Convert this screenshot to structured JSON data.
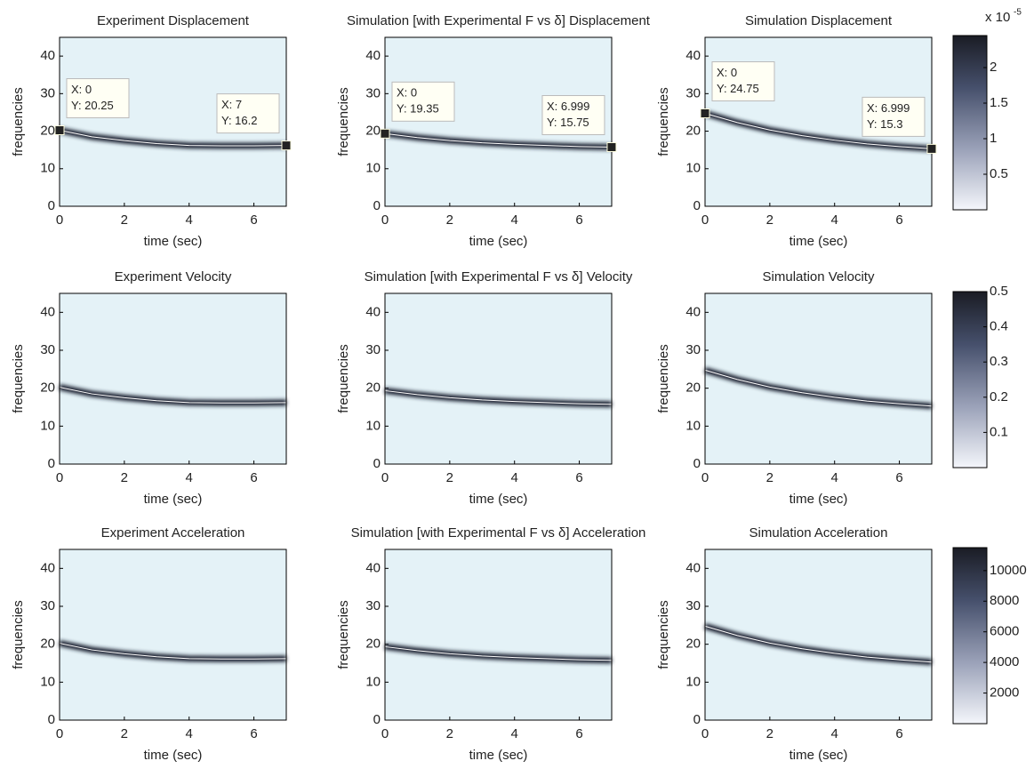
{
  "chart_data": [
    {
      "type": "line",
      "title": "Experiment Displacement",
      "xlabel": "time (sec)",
      "ylabel": "frequencies",
      "xlim": [
        0,
        7
      ],
      "xticks": [
        0,
        2,
        4,
        6
      ],
      "ylim": [
        0,
        45
      ],
      "yticks": [
        0,
        10,
        20,
        30,
        40
      ],
      "background_color": "#e4f2f7",
      "ridge_color": "#1e2433",
      "x": [
        0,
        1,
        2,
        3,
        4,
        5,
        6,
        7
      ],
      "values": [
        20.25,
        18.5,
        17.5,
        16.7,
        16.2,
        16.1,
        16.1,
        16.2
      ],
      "datatips": [
        {
          "x": 0,
          "y": 20.25,
          "x_label": "X: 0",
          "y_label": "Y: 20.25"
        },
        {
          "x": 7,
          "y": 16.2,
          "x_label": "X: 7",
          "y_label": "Y: 16.2"
        }
      ]
    },
    {
      "type": "line",
      "title": "Simulation [with Experimental F vs δ] Displacement",
      "xlabel": "time (sec)",
      "ylabel": "frequencies",
      "xlim": [
        0,
        7
      ],
      "xticks": [
        0,
        2,
        4,
        6
      ],
      "ylim": [
        0,
        45
      ],
      "yticks": [
        0,
        10,
        20,
        30,
        40
      ],
      "background_color": "#e4f2f7",
      "ridge_color": "#1e2433",
      "x": [
        0,
        1,
        2,
        3,
        4,
        5,
        6,
        7
      ],
      "values": [
        19.35,
        18.3,
        17.5,
        16.9,
        16.5,
        16.2,
        15.9,
        15.75
      ],
      "datatips": [
        {
          "x": 0,
          "y": 19.35,
          "x_label": "X: 0",
          "y_label": "Y: 19.35"
        },
        {
          "x": 6.999,
          "y": 15.75,
          "x_label": "X: 6.999",
          "y_label": "Y: 15.75"
        }
      ]
    },
    {
      "type": "line",
      "title": "Simulation Displacement",
      "xlabel": "time (sec)",
      "ylabel": "frequencies",
      "xlim": [
        0,
        7
      ],
      "xticks": [
        0,
        2,
        4,
        6
      ],
      "ylim": [
        0,
        45
      ],
      "yticks": [
        0,
        10,
        20,
        30,
        40
      ],
      "background_color": "#e4f2f7",
      "ridge_color": "#1e2433",
      "x": [
        0,
        1,
        2,
        3,
        4,
        5,
        6,
        7
      ],
      "values": [
        24.75,
        22.3,
        20.3,
        18.8,
        17.6,
        16.6,
        15.9,
        15.3
      ],
      "datatips": [
        {
          "x": 0,
          "y": 24.75,
          "x_label": "X: 0",
          "y_label": "Y: 24.75"
        },
        {
          "x": 6.999,
          "y": 15.3,
          "x_label": "X: 6.999",
          "y_label": "Y: 15.3"
        }
      ],
      "colorbar": {
        "lim": [
          0,
          2.45
        ],
        "ticks": [
          0.5,
          1,
          1.5,
          2
        ],
        "label": "x 10",
        "exponent": "-5"
      }
    },
    {
      "type": "line",
      "title": "Experiment Velocity",
      "xlabel": "time (sec)",
      "ylabel": "frequencies",
      "xlim": [
        0,
        7
      ],
      "xticks": [
        0,
        2,
        4,
        6
      ],
      "ylim": [
        0,
        45
      ],
      "yticks": [
        0,
        10,
        20,
        30,
        40
      ],
      "background_color": "#e4f2f7",
      "ridge_color": "#1e2433",
      "x": [
        0,
        1,
        2,
        3,
        4,
        5,
        6,
        7
      ],
      "values": [
        20.25,
        18.5,
        17.5,
        16.7,
        16.2,
        16.1,
        16.1,
        16.2
      ]
    },
    {
      "type": "line",
      "title": "Simulation [with Experimental F vs δ] Velocity",
      "xlabel": "time (sec)",
      "ylabel": "frequencies",
      "xlim": [
        0,
        7
      ],
      "xticks": [
        0,
        2,
        4,
        6
      ],
      "ylim": [
        0,
        45
      ],
      "yticks": [
        0,
        10,
        20,
        30,
        40
      ],
      "background_color": "#e4f2f7",
      "ridge_color": "#1e2433",
      "x": [
        0,
        1,
        2,
        3,
        4,
        5,
        6,
        7
      ],
      "values": [
        19.35,
        18.3,
        17.5,
        16.9,
        16.5,
        16.2,
        15.9,
        15.75
      ]
    },
    {
      "type": "line",
      "title": "Simulation Velocity",
      "xlabel": "time (sec)",
      "ylabel": "frequencies",
      "xlim": [
        0,
        7
      ],
      "xticks": [
        0,
        2,
        4,
        6
      ],
      "ylim": [
        0,
        45
      ],
      "yticks": [
        0,
        10,
        20,
        30,
        40
      ],
      "background_color": "#e4f2f7",
      "ridge_color": "#1e2433",
      "x": [
        0,
        1,
        2,
        3,
        4,
        5,
        6,
        7
      ],
      "values": [
        24.75,
        22.3,
        20.3,
        18.8,
        17.6,
        16.6,
        15.9,
        15.3
      ],
      "colorbar": {
        "lim": [
          0,
          0.5
        ],
        "ticks": [
          0.1,
          0.2,
          0.3,
          0.4,
          0.5
        ]
      }
    },
    {
      "type": "line",
      "title": "Experiment Acceleration",
      "xlabel": "time (sec)",
      "ylabel": "frequencies",
      "xlim": [
        0,
        7
      ],
      "xticks": [
        0,
        2,
        4,
        6
      ],
      "ylim": [
        0,
        45
      ],
      "yticks": [
        0,
        10,
        20,
        30,
        40
      ],
      "background_color": "#e4f2f7",
      "ridge_color": "#1e2433",
      "x": [
        0,
        1,
        2,
        3,
        4,
        5,
        6,
        7
      ],
      "values": [
        20.25,
        18.5,
        17.5,
        16.7,
        16.2,
        16.1,
        16.1,
        16.2
      ]
    },
    {
      "type": "line",
      "title": "Simulation [with Experimental F vs δ] Acceleration",
      "xlabel": "time (sec)",
      "ylabel": "frequencies",
      "xlim": [
        0,
        7
      ],
      "xticks": [
        0,
        2,
        4,
        6
      ],
      "ylim": [
        0,
        45
      ],
      "yticks": [
        0,
        10,
        20,
        30,
        40
      ],
      "background_color": "#e4f2f7",
      "ridge_color": "#1e2433",
      "x": [
        0,
        1,
        2,
        3,
        4,
        5,
        6,
        7
      ],
      "values": [
        19.35,
        18.3,
        17.5,
        16.9,
        16.5,
        16.2,
        15.9,
        15.75
      ]
    },
    {
      "type": "line",
      "title": "Simulation Acceleration",
      "xlabel": "time (sec)",
      "ylabel": "frequencies",
      "xlim": [
        0,
        7
      ],
      "xticks": [
        0,
        2,
        4,
        6
      ],
      "ylim": [
        0,
        45
      ],
      "yticks": [
        0,
        10,
        20,
        30,
        40
      ],
      "background_color": "#e4f2f7",
      "ridge_color": "#1e2433",
      "x": [
        0,
        1,
        2,
        3,
        4,
        5,
        6,
        7
      ],
      "values": [
        24.75,
        22.3,
        20.3,
        18.8,
        17.6,
        16.6,
        15.9,
        15.3
      ],
      "colorbar": {
        "lim": [
          0,
          11500
        ],
        "ticks": [
          2000,
          4000,
          6000,
          8000,
          10000
        ]
      }
    }
  ]
}
